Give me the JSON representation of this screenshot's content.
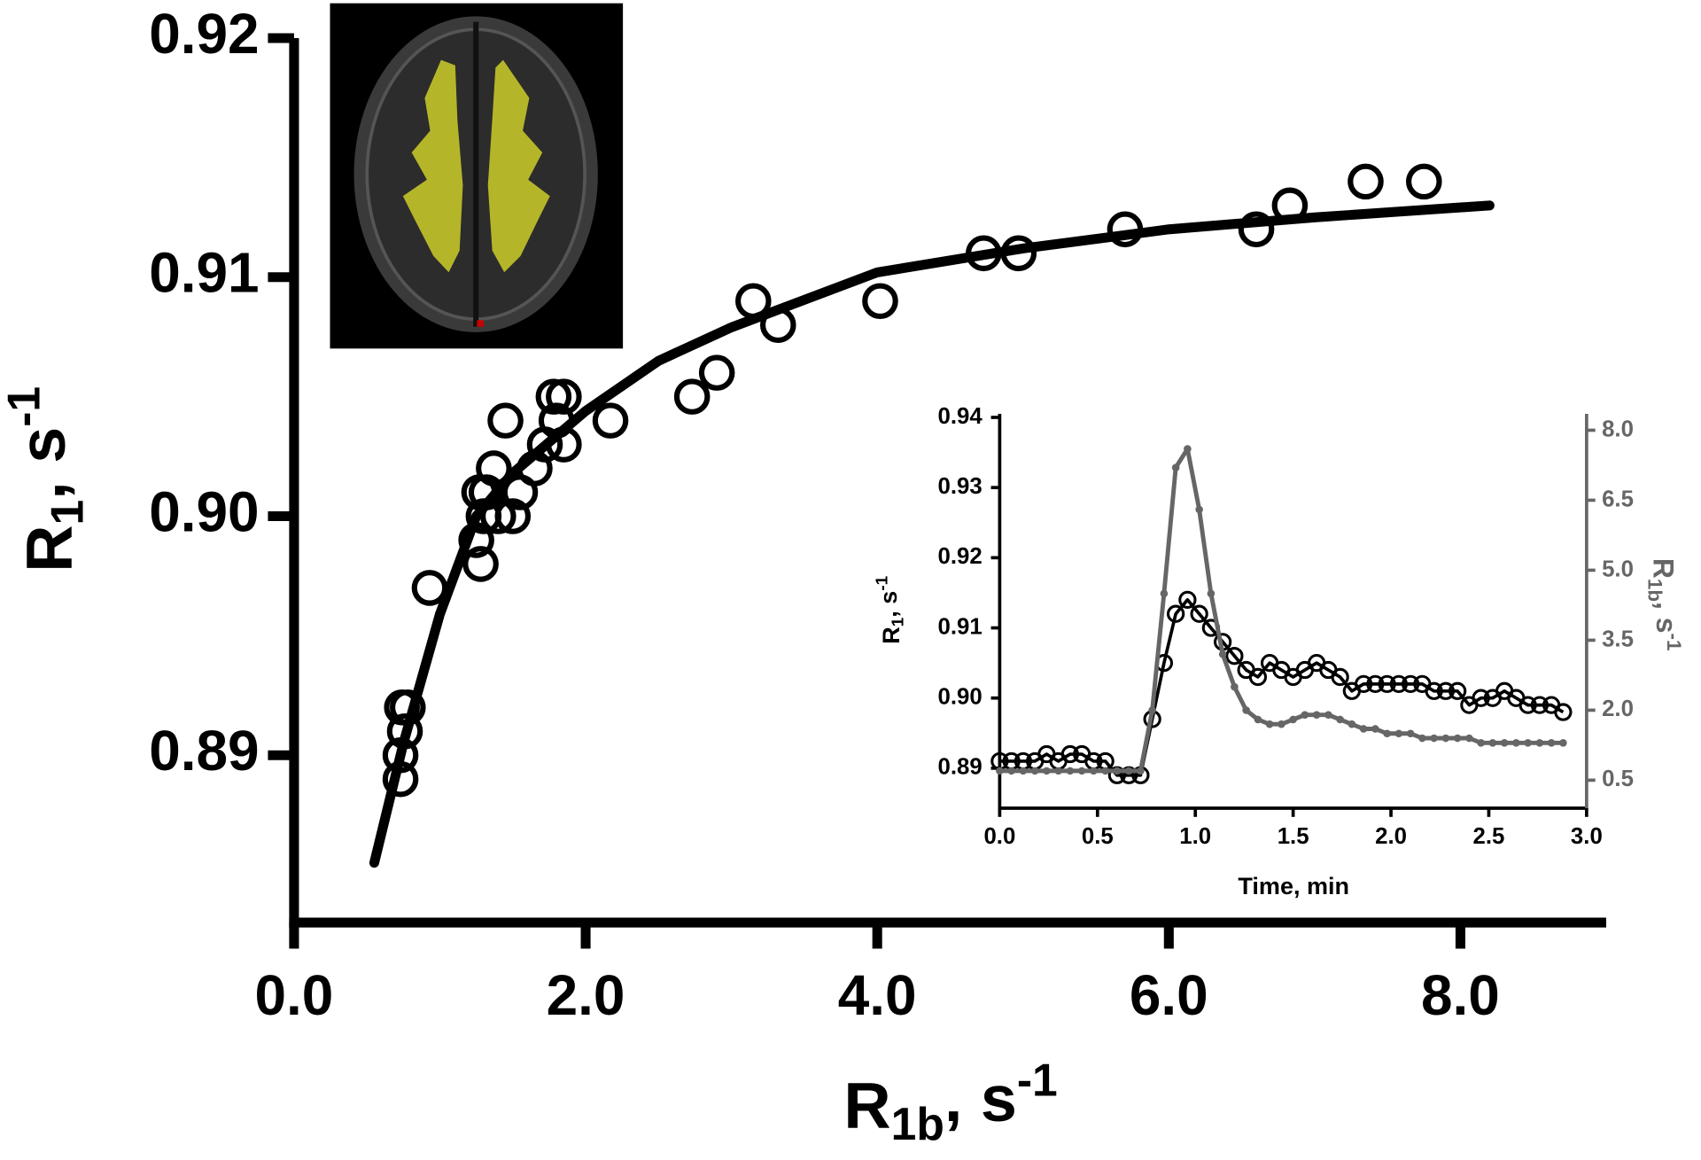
{
  "chart_data": [
    {
      "type": "scatter",
      "xlabel": {
        "base": "R",
        "sub": "1b",
        "rest": ", s",
        "sup": "-1"
      },
      "ylabel": {
        "base": "R",
        "sub": "1",
        "rest": ", s",
        "sup": "-1"
      },
      "xlim": [
        0,
        9.0
      ],
      "ylim": [
        0.883,
        0.92
      ],
      "xticks": [
        {
          "value": 0,
          "label": "0.0"
        },
        {
          "value": 2,
          "label": "2.0"
        },
        {
          "value": 4,
          "label": "4.0"
        },
        {
          "value": 6,
          "label": "6.0"
        },
        {
          "value": 8,
          "label": "8.0"
        }
      ],
      "yticks": [
        0.89,
        {
          "value": 0.9,
          "label": "0.90"
        },
        0.91,
        0.92
      ],
      "series": [
        {
          "style": "marker",
          "color": "#000000",
          "x": [
            0.73,
            0.73,
            0.76,
            0.78,
            0.74,
            0.93,
            1.28,
            1.25,
            1.3,
            1.32,
            1.27,
            1.37,
            1.4,
            1.5,
            1.55,
            1.45,
            1.65,
            1.72,
            1.8,
            1.85,
            1.78,
            1.85,
            2.17,
            2.73,
            2.9,
            3.15,
            3.32,
            4.02,
            4.73,
            4.97,
            5.7,
            6.6,
            6.83,
            7.35,
            7.75
          ],
          "values": [
            0.889,
            0.89,
            0.891,
            0.892,
            0.892,
            0.897,
            0.898,
            0.899,
            0.9,
            0.901,
            0.901,
            0.902,
            0.9,
            0.9,
            0.901,
            0.904,
            0.902,
            0.903,
            0.904,
            0.903,
            0.905,
            0.905,
            0.904,
            0.905,
            0.906,
            0.909,
            0.908,
            0.909,
            0.911,
            0.911,
            0.912,
            0.912,
            0.913,
            0.914,
            0.914
          ]
        },
        {
          "style": "line",
          "color": "#000000",
          "x": [
            0.55,
            0.75,
            1,
            1.25,
            1.5,
            2,
            2.5,
            3,
            4,
            5,
            6,
            7,
            8.2
          ],
          "values": [
            0.8855,
            0.8905,
            0.8959,
            0.9,
            0.9018,
            0.9044,
            0.9065,
            0.9079,
            0.9102,
            0.9112,
            0.912,
            0.9125,
            0.913
          ]
        }
      ]
    },
    {
      "type": "line",
      "xlabel": "Time, min",
      "ylabel": {
        "base": "R",
        "sub": "1",
        "rest": ", s",
        "sup": "-1"
      },
      "y2label": {
        "base": "R",
        "sub": "1b",
        "rest": ", s",
        "sup": "-1"
      },
      "xlim": [
        0,
        3.0
      ],
      "ylim": [
        0.8843,
        0.9405
      ],
      "y2lim": [
        -0.1,
        8.35
      ],
      "xticks": [
        {
          "value": 0,
          "label": "0.0"
        },
        0.5,
        {
          "value": 1,
          "label": "1.0"
        },
        1.5,
        {
          "value": 2,
          "label": "2.0"
        },
        2.5,
        {
          "value": 3,
          "label": "3.0"
        }
      ],
      "yticks": [
        0.89,
        {
          "value": 0.9,
          "label": "0.90"
        },
        0.91,
        0.92,
        0.93,
        0.94
      ],
      "y2ticks": [
        0.5,
        {
          "value": 2,
          "label": "2.0"
        },
        3.5,
        {
          "value": 5,
          "label": "5.0"
        },
        6.5,
        {
          "value": 8,
          "label": "8.0"
        }
      ],
      "x": [
        0,
        0.06,
        0.12,
        0.18,
        0.24,
        0.3,
        0.36,
        0.42,
        0.48,
        0.54,
        0.6,
        0.66,
        0.72,
        0.78,
        0.84,
        0.9,
        0.96,
        1.02,
        1.08,
        1.14,
        1.2,
        1.26,
        1.32,
        1.38,
        1.44,
        1.5,
        1.56,
        1.62,
        1.68,
        1.74,
        1.8,
        1.86,
        1.92,
        1.98,
        2.04,
        2.1,
        2.16,
        2.22,
        2.28,
        2.34,
        2.4,
        2.46,
        2.52,
        2.58,
        2.64,
        2.7,
        2.76,
        2.82,
        2.88
      ],
      "series": [
        {
          "color": "#000000",
          "marker": "open-circle",
          "values": [
            0.891,
            0.891,
            0.891,
            0.891,
            0.892,
            0.891,
            0.892,
            0.892,
            0.891,
            0.891,
            0.889,
            0.889,
            0.889,
            0.897,
            0.905,
            0.912,
            0.914,
            0.912,
            0.91,
            0.908,
            0.906,
            0.904,
            0.903,
            0.905,
            0.904,
            0.903,
            0.904,
            0.905,
            0.904,
            0.903,
            0.901,
            0.902,
            0.902,
            0.902,
            0.902,
            0.902,
            0.902,
            0.901,
            0.901,
            0.901,
            0.899,
            0.9,
            0.9,
            0.901,
            0.9,
            0.899,
            0.899,
            0.899,
            0.898
          ]
        },
        {
          "color": "#666666",
          "marker": "dot",
          "axis": "y2",
          "values": [
            0.7,
            0.7,
            0.7,
            0.7,
            0.7,
            0.7,
            0.7,
            0.7,
            0.7,
            0.7,
            0.7,
            0.7,
            0.7,
            2.0,
            4.5,
            7.2,
            7.6,
            6.3,
            4.5,
            3.2,
            2.5,
            2.0,
            1.8,
            1.7,
            1.7,
            1.8,
            1.9,
            1.9,
            1.9,
            1.8,
            1.7,
            1.6,
            1.6,
            1.5,
            1.5,
            1.5,
            1.4,
            1.4,
            1.4,
            1.4,
            1.4,
            1.3,
            1.3,
            1.3,
            1.3,
            1.3,
            1.3,
            1.3,
            1.3
          ]
        }
      ]
    }
  ]
}
